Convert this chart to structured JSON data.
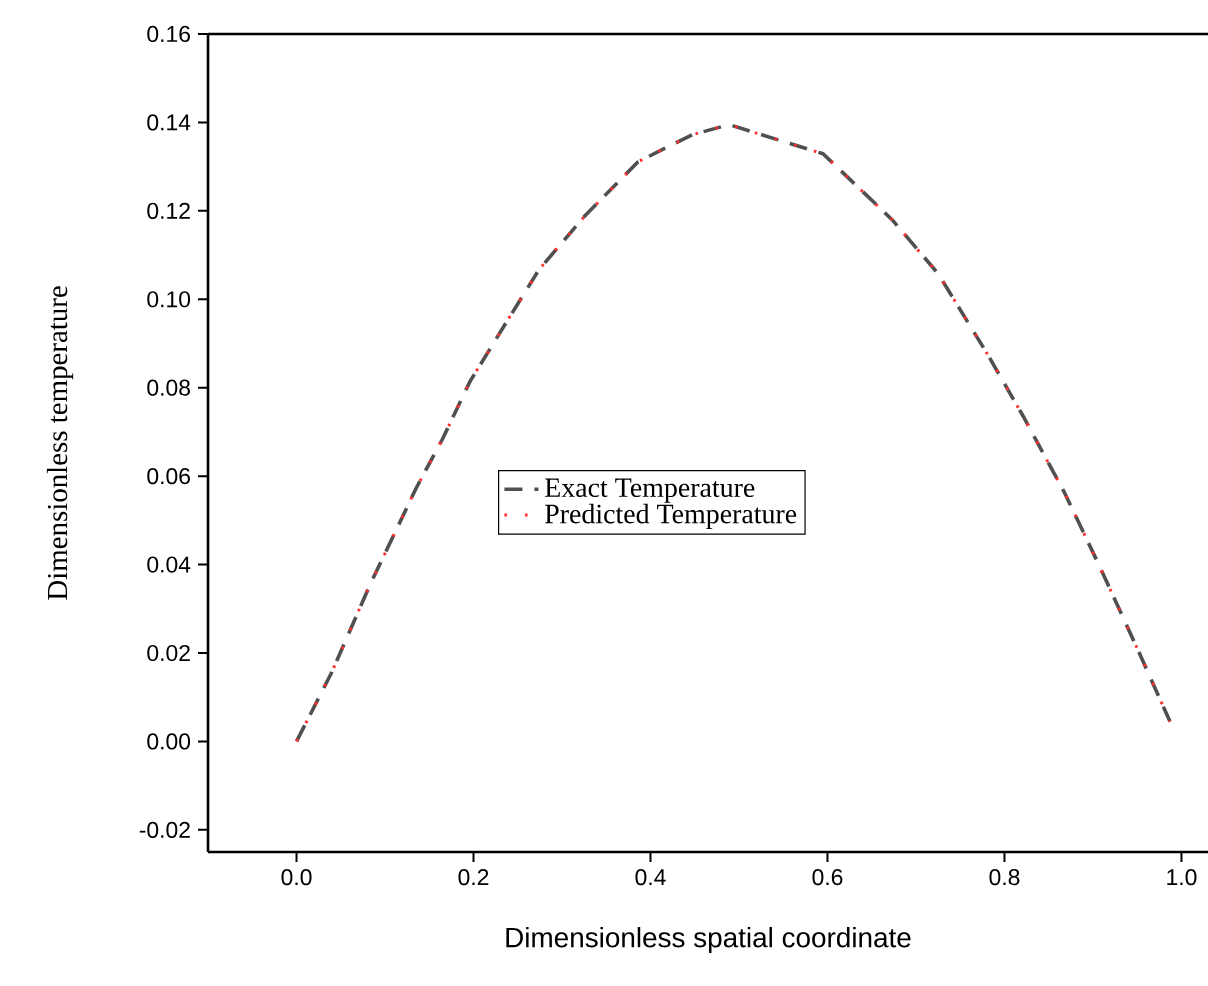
{
  "chart_data": {
    "type": "line",
    "xlabel": "Dimensionless spatial coordinate",
    "ylabel": "Dimensionless temperature",
    "x": [
      0,
      0.039,
      0.083,
      0.135,
      0.165,
      0.196,
      0.239,
      0.274,
      0.326,
      0.386,
      0.447,
      0.489,
      0.595,
      0.673,
      0.725,
      0.781,
      0.821,
      0.868,
      0.907,
      0.951,
      0.987
    ],
    "series": [
      {
        "name": "Exact Temperature",
        "color": "#505050",
        "line_style": "dashed",
        "values": [
          0,
          0.0153,
          0.0354,
          0.0572,
          0.0684,
          0.0814,
          0.0954,
          0.1067,
          0.1189,
          0.1311,
          0.1372,
          0.1395,
          0.1329,
          0.118,
          0.1058,
          0.0875,
          0.0736,
          0.0562,
          0.0398,
          0.0206,
          0.0045
        ]
      },
      {
        "name": "Predicted Temperature",
        "color": "#ff3030",
        "line_style": "dotted",
        "values": [
          0,
          0.0153,
          0.0354,
          0.0572,
          0.0684,
          0.0814,
          0.0954,
          0.1067,
          0.1189,
          0.1311,
          0.1372,
          0.1395,
          0.1329,
          0.118,
          0.1058,
          0.0875,
          0.0736,
          0.0562,
          0.0398,
          0.0206,
          0.0045
        ]
      }
    ],
    "xlim": [
      -0.1,
      1.03
    ],
    "ylim": [
      -0.025,
      0.16
    ],
    "xticks": [
      {
        "value": 0,
        "label": "0.0"
      },
      {
        "value": 0.2,
        "label": "0.2"
      },
      {
        "value": 0.4,
        "label": "0.4"
      },
      {
        "value": 0.6,
        "label": "0.6"
      },
      {
        "value": 0.8,
        "label": "0.8"
      },
      {
        "value": 1,
        "label": "1.0"
      }
    ],
    "yticks": [
      {
        "value": -0.02,
        "label": "-0.02"
      },
      {
        "value": 0,
        "label": "0.00"
      },
      {
        "value": 0.02,
        "label": "0.02"
      },
      {
        "value": 0.04,
        "label": "0.04"
      },
      {
        "value": 0.06,
        "label": "0.06"
      },
      {
        "value": 0.08,
        "label": "0.08"
      },
      {
        "value": 0.1,
        "label": "0.10"
      },
      {
        "value": 0.12,
        "label": "0.12"
      },
      {
        "value": 0.14,
        "label": "0.14"
      },
      {
        "value": 0.16,
        "label": "0.16"
      }
    ],
    "grid": false,
    "legend": "center"
  }
}
